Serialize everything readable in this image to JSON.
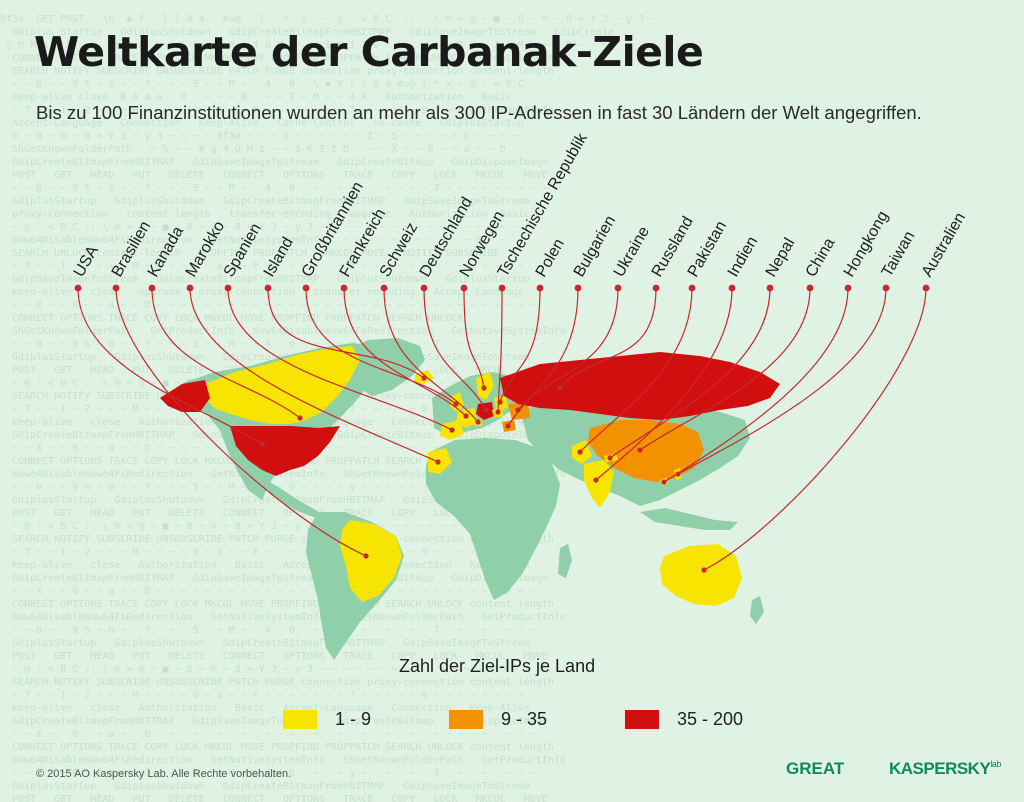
{
  "title": "Weltkarte der Carbanak-Ziele",
  "subtitle": "Bis zu 100 Finanzinstitutionen wurden an mehr als 300 IP-Adressen in fast 30 Ländern der Welt angegriffen.",
  "legend": {
    "title": "Zahl der Ziel-IPs je Land",
    "items": [
      {
        "label": "1 - 9",
        "color": "#f7e400"
      },
      {
        "label": "9 - 35",
        "color": "#f39200"
      },
      {
        "label": "35 - 200",
        "color": "#d10f0f"
      }
    ]
  },
  "countries": [
    {
      "name": "USA",
      "category": "35 - 200"
    },
    {
      "name": "Brasilien",
      "category": "1 - 9"
    },
    {
      "name": "Kanada",
      "category": "1 - 9"
    },
    {
      "name": "Marokko",
      "category": "1 - 9"
    },
    {
      "name": "Spanien",
      "category": "1 - 9"
    },
    {
      "name": "Island",
      "category": "1 - 9"
    },
    {
      "name": "Großbritannien",
      "category": "1 - 9"
    },
    {
      "name": "Frankreich",
      "category": "1 - 9"
    },
    {
      "name": "Schweiz",
      "category": "1 - 9"
    },
    {
      "name": "Deutschland",
      "category": "35 - 200"
    },
    {
      "name": "Norwegen",
      "category": "1 - 9"
    },
    {
      "name": "Tschechische Republik",
      "category": "1 - 9"
    },
    {
      "name": "Polen",
      "category": "1 - 9"
    },
    {
      "name": "Bulgarien",
      "category": "1 - 9"
    },
    {
      "name": "Ukraine",
      "category": "35 - 200"
    },
    {
      "name": "Russland",
      "category": "35 - 200"
    },
    {
      "name": "Pakistan",
      "category": "1 - 9"
    },
    {
      "name": "Indien",
      "category": "1 - 9"
    },
    {
      "name": "Nepal",
      "category": "1 - 9"
    },
    {
      "name": "China",
      "category": "9 - 35"
    },
    {
      "name": "Hongkong",
      "category": "1 - 9"
    },
    {
      "name": "Taiwan",
      "category": "1 - 9"
    },
    {
      "name": "Australien",
      "category": "1 - 9"
    }
  ],
  "colors": {
    "background": "#dff2e3",
    "land": "#8fcfa9",
    "leader_line": "#c8282f",
    "brand_green": "#0f8a5c"
  },
  "footer": {
    "copyright": "© 2015 AO Kaspersky Lab. Alle Rechte vorbehalten.",
    "logo_great": "GREAT",
    "logo_kaspersky": "KASPERSKY",
    "logo_lab": "lab"
  }
}
